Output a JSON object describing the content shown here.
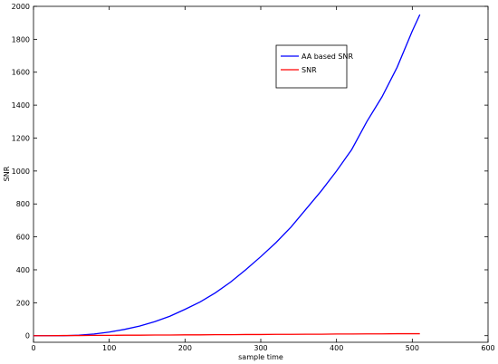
{
  "chart_data": {
    "type": "line",
    "x_label": "sample time",
    "y_label": "SNR",
    "x": [
      0,
      20,
      40,
      60,
      80,
      100,
      120,
      140,
      160,
      180,
      200,
      220,
      240,
      260,
      280,
      300,
      320,
      340,
      360,
      380,
      400,
      420,
      440,
      460,
      480,
      500,
      510
    ],
    "series": [
      {
        "name": "AA based SNR",
        "color": "#0000ff",
        "values": [
          0,
          0,
          0,
          3,
          10,
          22,
          38,
          58,
          85,
          118,
          160,
          205,
          260,
          325,
          400,
          480,
          565,
          660,
          770,
          880,
          1000,
          1130,
          1300,
          1450,
          1630,
          1850,
          1950
        ]
      },
      {
        "name": "SNR",
        "color": "#ff0000",
        "values": [
          0,
          0,
          1,
          1,
          2,
          2,
          3,
          3,
          4,
          4,
          5,
          5,
          6,
          6,
          7,
          7,
          8,
          8,
          9,
          9,
          10,
          10,
          11,
          11,
          12,
          12,
          12
        ]
      }
    ],
    "xlim": [
      0,
      600
    ],
    "xticks": [
      0,
      100,
      200,
      300,
      400,
      500,
      600
    ],
    "ylim": [
      -40,
      2000
    ],
    "yticks": [
      0,
      200,
      400,
      600,
      800,
      1000,
      1200,
      1400,
      1600,
      1800,
      2000
    ],
    "legend": "top-center"
  }
}
